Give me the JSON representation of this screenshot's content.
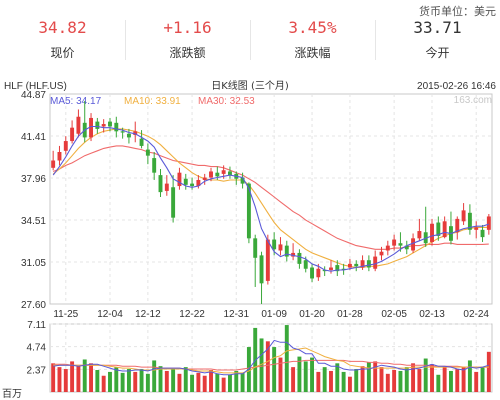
{
  "header": {
    "currency_unit": "货币单位：美元",
    "stats": [
      {
        "value": "34.82",
        "label": "现价",
        "color": "#e34b4b"
      },
      {
        "value": "+1.16",
        "label": "涨跌额",
        "color": "#e34b4b"
      },
      {
        "value": "3.45%",
        "label": "涨跌幅",
        "color": "#e34b4b"
      },
      {
        "value": "33.71",
        "label": "今开",
        "color": "#333333"
      }
    ]
  },
  "chart_meta": {
    "symbol": "HLF (HLF.US)",
    "title": "日K线图 (三个月)",
    "timestamp": "2015-02-26 16:46",
    "watermark": "163.com",
    "ma_labels": [
      {
        "text": "MA5: 34.17",
        "color": "#5a5ad8"
      },
      {
        "text": "MA10: 33.91",
        "color": "#f0b040"
      },
      {
        "text": "MA30: 32.53",
        "color": "#f06b6b"
      }
    ],
    "volume_unit": "百万",
    "colors": {
      "up": "#e53b3b",
      "down": "#3aa83a",
      "ma5": "#5a5ad8",
      "ma10": "#f0b040",
      "ma30": "#f06b6b"
    }
  },
  "chart_data": [
    {
      "type": "candlestick",
      "title": "日K线图 (三个月)",
      "ylim": [
        27.6,
        44.87
      ],
      "yticks": [
        "44.87",
        "41.41",
        "37.96",
        "34.51",
        "31.05",
        "27.60"
      ],
      "xticks": [
        "11-25",
        "12-04",
        "12-12",
        "12-22",
        "12-31",
        "01-09",
        "01-20",
        "01-28",
        "02-05",
        "02-13",
        "02-24"
      ],
      "candles": [
        [
          38.8,
          39.4,
          40.2,
          38.6
        ],
        [
          39.4,
          40.1,
          40.6,
          39.0
        ],
        [
          40.2,
          41.0,
          41.4,
          39.9
        ],
        [
          41.0,
          42.1,
          42.7,
          40.8
        ],
        [
          41.6,
          43.0,
          43.6,
          41.3
        ],
        [
          42.5,
          41.3,
          44.3,
          40.9
        ],
        [
          41.3,
          42.9,
          43.3,
          41.0
        ],
        [
          42.6,
          42.0,
          42.9,
          41.6
        ],
        [
          42.2,
          42.4,
          42.8,
          41.7
        ],
        [
          42.6,
          42.2,
          42.9,
          41.8
        ],
        [
          42.5,
          41.8,
          43.0,
          41.3
        ],
        [
          41.8,
          41.7,
          42.1,
          41.2
        ],
        [
          41.6,
          41.3,
          42.0,
          40.8
        ],
        [
          41.5,
          41.8,
          42.6,
          40.9
        ],
        [
          41.2,
          40.6,
          41.9,
          40.4
        ],
        [
          40.3,
          39.8,
          40.8,
          39.1
        ],
        [
          39.6,
          38.4,
          40.1,
          37.8
        ],
        [
          38.2,
          36.8,
          38.7,
          36.4
        ],
        [
          36.9,
          37.5,
          38.2,
          36.5
        ],
        [
          37.2,
          34.7,
          38.2,
          34.3
        ],
        [
          37.3,
          38.4,
          38.8,
          37.0
        ],
        [
          37.9,
          37.4,
          38.3,
          37.0
        ],
        [
          37.5,
          37.3,
          38.0,
          37.0
        ],
        [
          37.3,
          37.8,
          38.2,
          37.1
        ],
        [
          37.8,
          38.0,
          38.3,
          37.4
        ],
        [
          38.0,
          38.5,
          38.8,
          37.7
        ],
        [
          38.4,
          38.1,
          38.9,
          37.8
        ],
        [
          38.3,
          38.6,
          39.0,
          37.9
        ],
        [
          38.5,
          38.2,
          38.9,
          37.9
        ],
        [
          38.3,
          37.9,
          38.5,
          37.4
        ],
        [
          38.0,
          37.5,
          38.4,
          37.1
        ],
        [
          37.5,
          33.0,
          37.6,
          32.6
        ],
        [
          33.0,
          31.4,
          33.3,
          29.0
        ],
        [
          31.6,
          29.3,
          31.9,
          27.6
        ],
        [
          29.5,
          32.9,
          33.3,
          29.2
        ],
        [
          32.9,
          32.1,
          33.5,
          31.6
        ],
        [
          32.0,
          32.5,
          33.1,
          31.6
        ],
        [
          32.4,
          31.5,
          32.8,
          31.1
        ],
        [
          31.5,
          31.8,
          32.6,
          31.2
        ],
        [
          31.8,
          30.9,
          32.1,
          30.5
        ],
        [
          31.2,
          30.5,
          31.5,
          30.2
        ],
        [
          30.6,
          29.7,
          30.9,
          29.4
        ],
        [
          29.8,
          30.5,
          30.9,
          29.5
        ],
        [
          30.4,
          30.3,
          30.7,
          29.9
        ],
        [
          30.4,
          30.6,
          31.2,
          30.1
        ],
        [
          30.8,
          30.3,
          31.2,
          29.9
        ],
        [
          30.5,
          30.4,
          30.9,
          30.0
        ],
        [
          30.6,
          30.9,
          31.3,
          30.4
        ],
        [
          30.9,
          30.7,
          31.2,
          30.3
        ],
        [
          30.6,
          31.2,
          31.6,
          30.4
        ],
        [
          31.2,
          30.6,
          31.6,
          30.3
        ],
        [
          30.5,
          31.5,
          32.0,
          30.3
        ],
        [
          31.6,
          31.9,
          32.3,
          31.2
        ],
        [
          32.0,
          32.4,
          32.8,
          31.6
        ],
        [
          32.4,
          32.9,
          33.3,
          32.0
        ],
        [
          32.6,
          32.4,
          33.5,
          31.9
        ],
        [
          32.4,
          32.1,
          32.8,
          31.7
        ],
        [
          32.0,
          33.0,
          33.4,
          31.8
        ],
        [
          33.0,
          33.6,
          34.6,
          32.8
        ],
        [
          33.5,
          32.6,
          35.6,
          32.3
        ],
        [
          32.7,
          34.2,
          34.6,
          32.4
        ],
        [
          34.3,
          33.2,
          34.8,
          32.8
        ],
        [
          33.1,
          34.4,
          34.8,
          33.0
        ],
        [
          34.0,
          32.8,
          35.2,
          32.5
        ],
        [
          33.5,
          34.6,
          34.8,
          32.9
        ],
        [
          34.4,
          35.3,
          35.9,
          34.1
        ],
        [
          35.1,
          33.7,
          35.8,
          33.3
        ],
        [
          33.7,
          33.9,
          34.4,
          33.0
        ],
        [
          33.7,
          33.1,
          34.1,
          32.7
        ],
        [
          33.7,
          34.8,
          35.0,
          33.3
        ]
      ],
      "series": [
        {
          "name": "MA5",
          "values": [
            38.2,
            38.9,
            39.7,
            40.6,
            41.4,
            41.9,
            42.2,
            42.2,
            42.1,
            42.1,
            42.0,
            41.9,
            41.7,
            41.6,
            41.3,
            41.0,
            40.5,
            39.6,
            38.8,
            37.9,
            37.6,
            37.3,
            37.2,
            37.3,
            37.7,
            37.9,
            38.0,
            38.1,
            38.2,
            38.1,
            38.0,
            37.1,
            35.6,
            33.8,
            32.8,
            31.9,
            31.5,
            31.7,
            31.6,
            31.5,
            31.3,
            30.9,
            30.7,
            30.4,
            30.3,
            30.4,
            30.4,
            30.5,
            30.6,
            30.7,
            30.8,
            30.9,
            31.1,
            31.4,
            31.7,
            32.1,
            32.4,
            32.6,
            32.8,
            33.0,
            33.2,
            33.3,
            33.5,
            33.4,
            33.6,
            33.8,
            33.9,
            34.0,
            34.0,
            34.17
          ]
        },
        {
          "name": "MA10",
          "values": [
            38.3,
            38.7,
            39.2,
            39.8,
            40.4,
            40.9,
            41.3,
            41.6,
            41.8,
            41.9,
            42.0,
            42.0,
            41.9,
            41.8,
            41.6,
            41.4,
            41.1,
            40.7,
            40.2,
            39.7,
            39.2,
            38.8,
            38.4,
            38.1,
            37.9,
            37.8,
            37.8,
            37.7,
            37.8,
            37.8,
            37.8,
            37.4,
            36.7,
            35.9,
            35.1,
            34.3,
            33.7,
            33.3,
            32.9,
            32.5,
            32.1,
            31.8,
            31.6,
            31.4,
            31.2,
            31.0,
            30.8,
            30.7,
            30.6,
            30.6,
            30.7,
            30.7,
            30.8,
            30.9,
            31.1,
            31.3,
            31.5,
            31.8,
            32.1,
            32.4,
            32.7,
            33.0,
            33.2,
            33.4,
            33.5,
            33.7,
            33.8,
            33.9,
            33.9,
            33.91
          ]
        },
        {
          "name": "MA30",
          "values": [
            38.5,
            38.7,
            39.0,
            39.2,
            39.5,
            39.8,
            40.0,
            40.2,
            40.4,
            40.5,
            40.6,
            40.6,
            40.5,
            40.4,
            40.3,
            40.1,
            40.0,
            39.8,
            39.6,
            39.4,
            39.3,
            39.2,
            39.1,
            39.0,
            39.0,
            38.9,
            38.9,
            38.8,
            38.6,
            38.4,
            38.2,
            37.9,
            37.6,
            37.2,
            36.8,
            36.4,
            36.0,
            35.6,
            35.2,
            34.9,
            34.5,
            34.2,
            33.9,
            33.6,
            33.3,
            33.0,
            32.8,
            32.6,
            32.4,
            32.3,
            32.2,
            32.1,
            32.1,
            32.1,
            32.2,
            32.2,
            32.3,
            32.4,
            32.4,
            32.5,
            32.5,
            32.5,
            32.6,
            32.6,
            32.5,
            32.5,
            32.5,
            32.5,
            32.5,
            32.53
          ]
        }
      ]
    },
    {
      "type": "bar",
      "title": "",
      "ylabel": "百万",
      "ylim": [
        0,
        7.11
      ],
      "yticks": [
        "7.11",
        "4.74",
        "2.37"
      ],
      "values": [
        3.0,
        2.6,
        2.4,
        3.2,
        2.7,
        3.4,
        3.0,
        2.3,
        1.7,
        2.1,
        2.6,
        2.0,
        2.4,
        2.1,
        2.4,
        1.9,
        3.3,
        2.7,
        2.2,
        2.4,
        1.9,
        2.6,
        1.8,
        2.0,
        1.7,
        2.3,
        1.9,
        1.5,
        1.8,
        2.2,
        2.0,
        4.7,
        6.7,
        5.6,
        5.3,
        4.7,
        3.6,
        7.0,
        2.6,
        3.7,
        3.2,
        3.6,
        2.1,
        2.6,
        2.2,
        3.0,
        2.1,
        1.6,
        2.4,
        2.7,
        3.1,
        3.2,
        2.6,
        1.9,
        2.3,
        2.2,
        2.6,
        3.0,
        2.4,
        3.5,
        2.9,
        1.8,
        2.7,
        2.2,
        2.4,
        2.6,
        3.3,
        2.1,
        2.6,
        4.2
      ],
      "series": [
        {
          "name": "MA5",
          "values": [
            2.7,
            2.8,
            2.8,
            2.8,
            2.7,
            2.8,
            2.9,
            2.9,
            2.7,
            2.5,
            2.3,
            2.2,
            2.2,
            2.3,
            2.3,
            2.2,
            2.4,
            2.5,
            2.5,
            2.5,
            2.5,
            2.4,
            2.2,
            2.1,
            2.0,
            2.1,
            1.9,
            1.8,
            1.8,
            1.9,
            1.9,
            2.4,
            3.3,
            3.9,
            4.5,
            5.4,
            5.2,
            5.2,
            4.6,
            4.4,
            4.0,
            4.0,
            3.0,
            3.0,
            2.7,
            2.7,
            2.4,
            2.3,
            2.3,
            2.4,
            2.4,
            2.6,
            2.8,
            2.7,
            2.6,
            2.4,
            2.3,
            2.4,
            2.5,
            2.7,
            2.9,
            2.7,
            2.7,
            2.6,
            2.4,
            2.3,
            2.6,
            2.5,
            2.6,
            2.8
          ]
        },
        {
          "name": "MA10",
          "values": [
            2.8,
            2.8,
            2.8,
            2.8,
            2.8,
            2.8,
            2.8,
            2.8,
            2.8,
            2.7,
            2.6,
            2.5,
            2.5,
            2.4,
            2.3,
            2.3,
            2.3,
            2.4,
            2.4,
            2.4,
            2.4,
            2.4,
            2.3,
            2.2,
            2.2,
            2.2,
            2.1,
            2.0,
            2.0,
            2.0,
            2.0,
            2.2,
            2.6,
            2.9,
            3.2,
            3.6,
            3.8,
            4.3,
            4.4,
            4.5,
            4.6,
            4.3,
            4.0,
            3.7,
            3.5,
            3.3,
            3.2,
            2.8,
            2.7,
            2.6,
            2.5,
            2.5,
            2.5,
            2.5,
            2.5,
            2.5,
            2.5,
            2.6,
            2.6,
            2.6,
            2.6,
            2.6,
            2.6,
            2.6,
            2.6,
            2.6,
            2.6,
            2.6,
            2.6,
            2.6
          ]
        },
        {
          "name": "MA30",
          "values": [
            2.9,
            2.9,
            2.9,
            2.8,
            2.8,
            2.8,
            2.8,
            2.8,
            2.8,
            2.8,
            2.8,
            2.7,
            2.7,
            2.7,
            2.6,
            2.6,
            2.6,
            2.5,
            2.5,
            2.5,
            2.5,
            2.4,
            2.4,
            2.4,
            2.4,
            2.4,
            2.3,
            2.3,
            2.3,
            2.3,
            2.4,
            2.5,
            2.6,
            2.7,
            2.8,
            2.9,
            3.0,
            3.1,
            3.2,
            3.2,
            3.3,
            3.3,
            3.3,
            3.3,
            3.3,
            3.3,
            3.3,
            3.2,
            3.2,
            3.2,
            3.1,
            3.1,
            3.0,
            3.0,
            2.9,
            2.9,
            2.8,
            2.8,
            2.8,
            2.8,
            2.7,
            2.7,
            2.7,
            2.7,
            2.7,
            2.6,
            2.6,
            2.6,
            2.6,
            2.6
          ]
        }
      ]
    }
  ]
}
